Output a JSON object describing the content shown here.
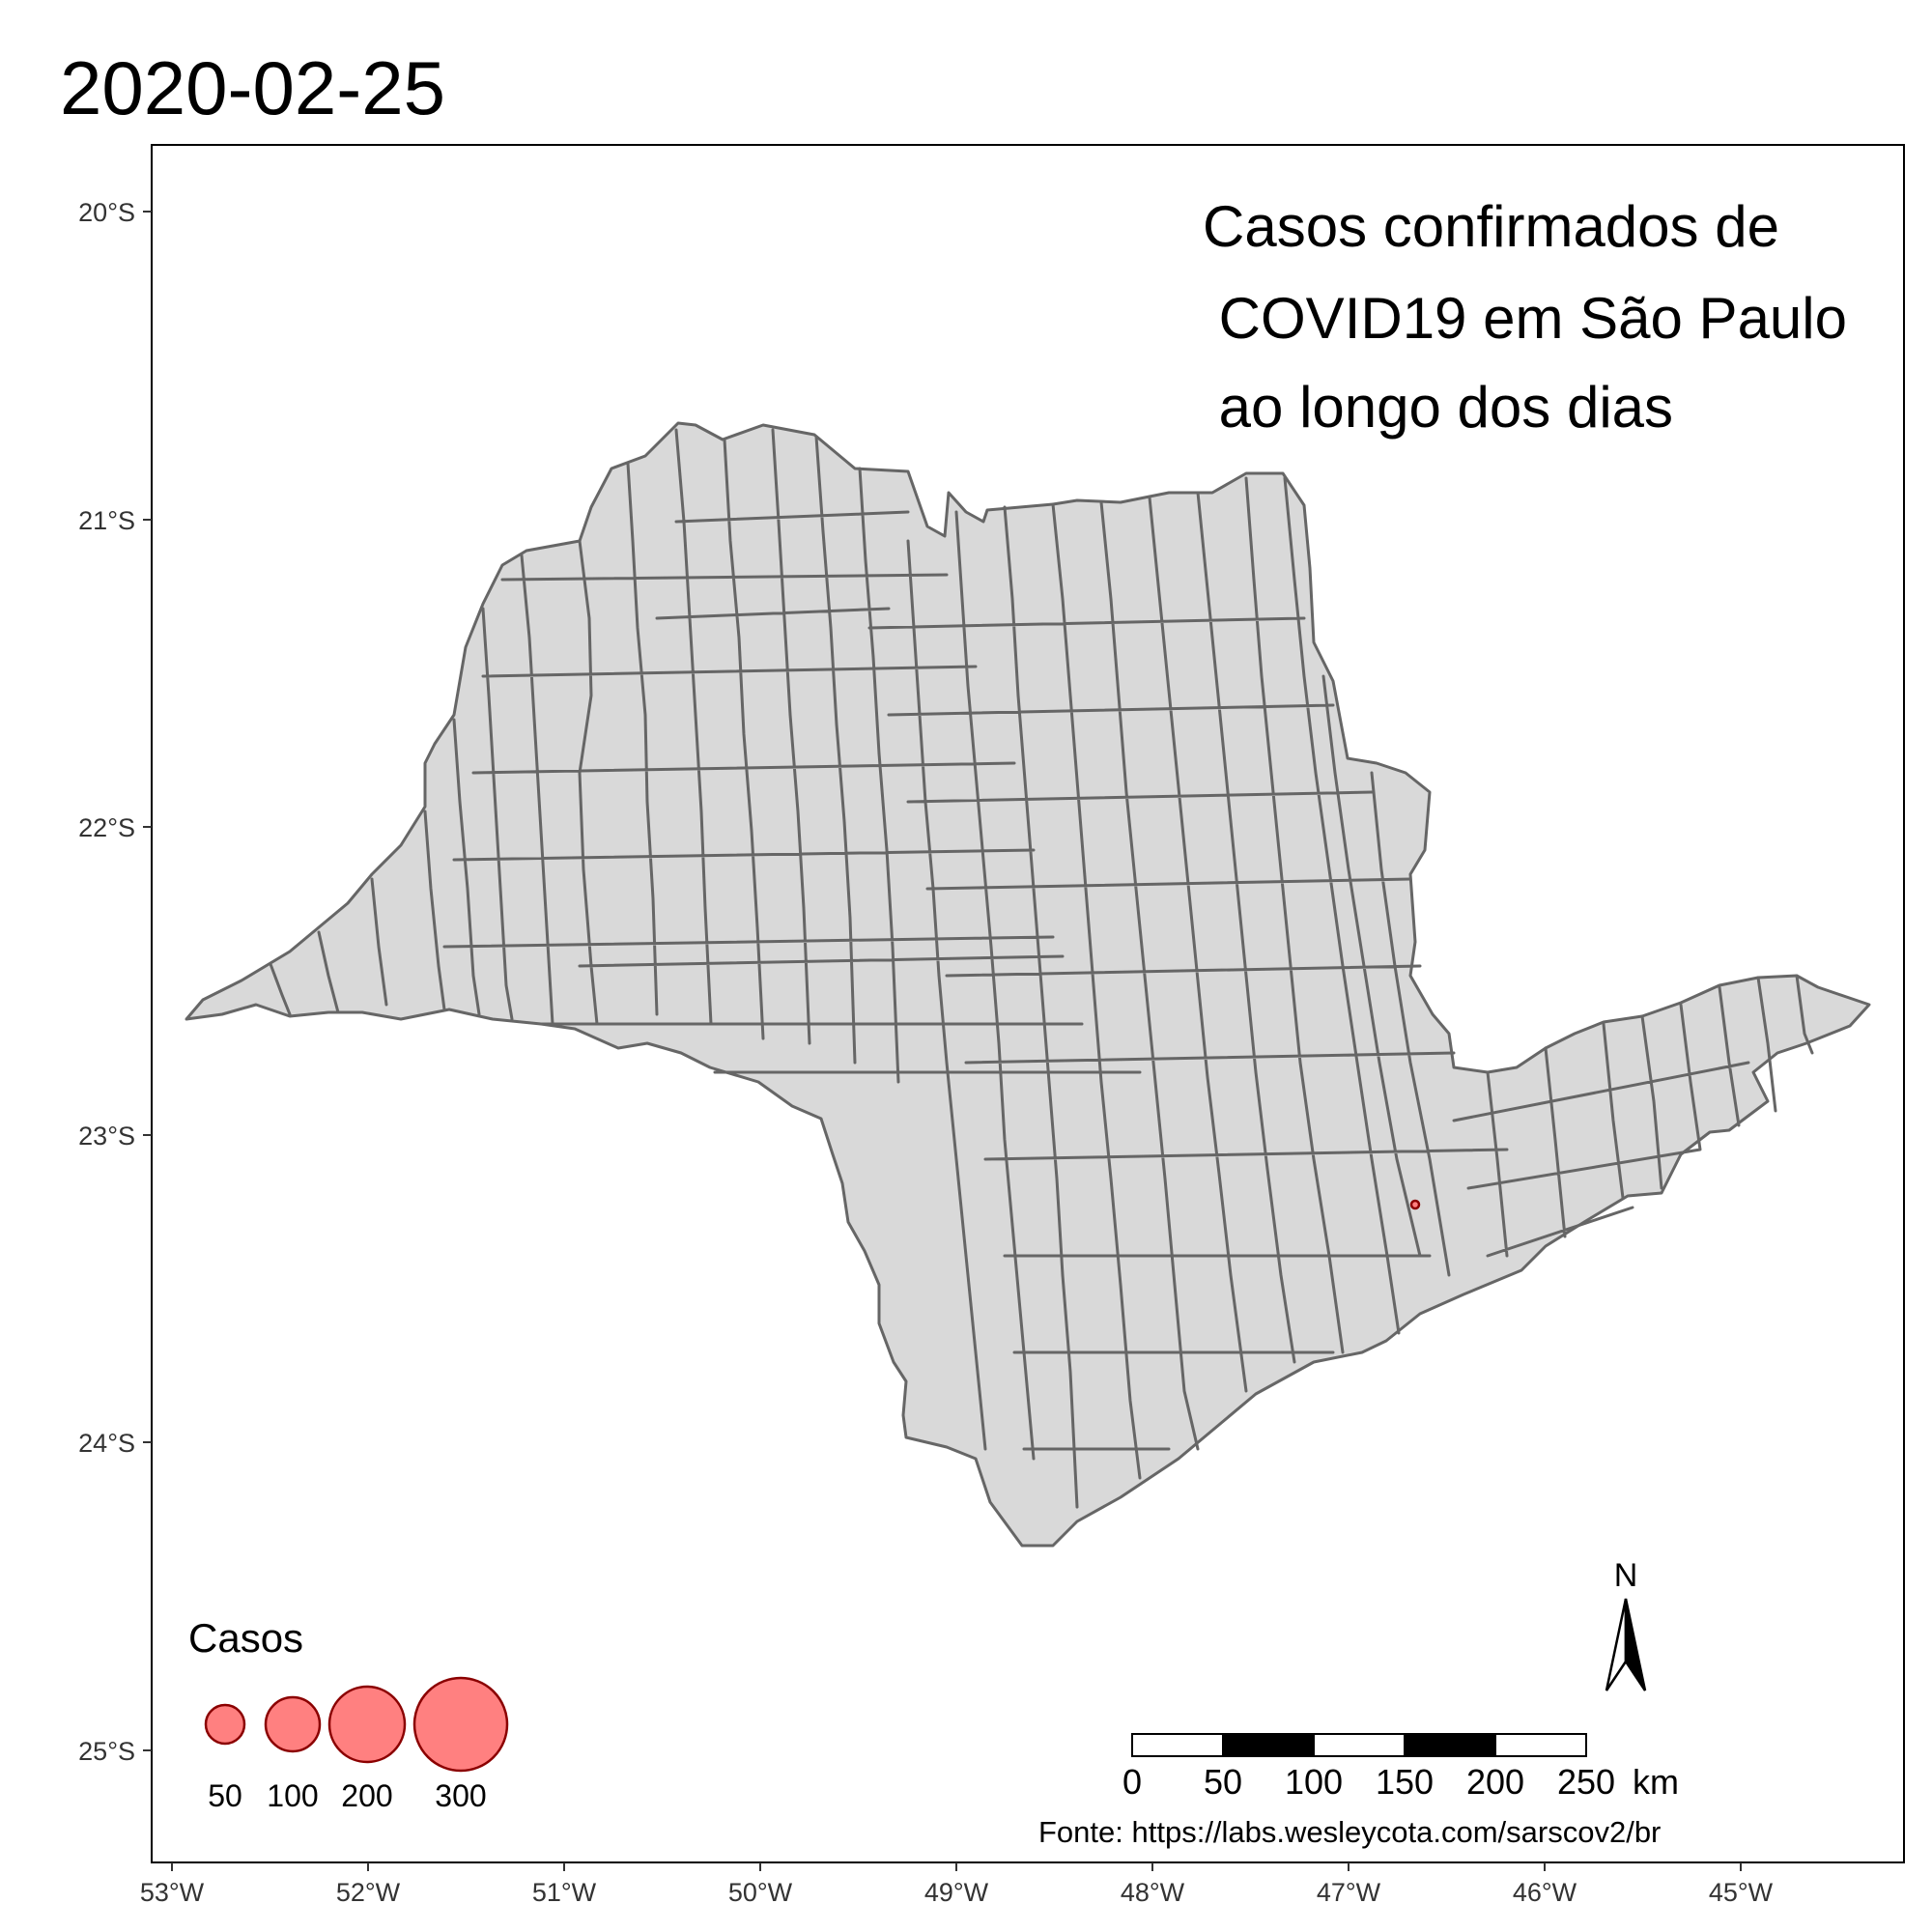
{
  "title": "2020-02-25",
  "annotation": {
    "lines": [
      "Casos confirmados de",
      " COVID19 em São Paulo",
      " ao longo dos dias"
    ]
  },
  "axes": {
    "y_ticks": [
      "20°S",
      "21°S",
      "22°S",
      "23°S",
      "24°S",
      "25°S"
    ],
    "x_ticks": [
      "53°W",
      "52°W",
      "51°W",
      "50°W",
      "49°W",
      "48°W",
      "47°W",
      "46°W",
      "45°W"
    ]
  },
  "legend": {
    "title": "Casos",
    "items": [
      {
        "label": "50",
        "value": 50
      },
      {
        "label": "100",
        "value": 100
      },
      {
        "label": "200",
        "value": 200
      },
      {
        "label": "300",
        "value": 300
      }
    ]
  },
  "scale_bar": {
    "labels": [
      "0",
      "50",
      "100",
      "150",
      "200",
      "250"
    ],
    "unit": "km"
  },
  "north_arrow": {
    "label": "N"
  },
  "source": "Fonte: https://labs.wesleycota.com/sarscov2/br",
  "cases": [
    {
      "lon": -46.63,
      "lat": -23.55,
      "value": 1
    }
  ],
  "colors": {
    "state_fill": "#d9d9d9",
    "border": "#666666",
    "bubble_fill": "#ff8080",
    "bubble_stroke": "#8b0000"
  }
}
